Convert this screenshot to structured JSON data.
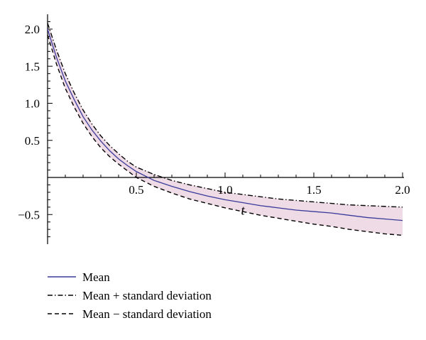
{
  "chart_data": {
    "type": "line",
    "title": "",
    "xlabel": "t",
    "ylabel": "",
    "xlim": [
      0,
      2.0
    ],
    "ylim": [
      -0.9,
      2.2
    ],
    "x_ticks": [
      0.5,
      1.0,
      1.5,
      2.0
    ],
    "x_tick_labels": [
      "0.5",
      "1.0",
      "1.5",
      "2.0"
    ],
    "y_ticks": [
      -0.5,
      0.5,
      1.0,
      1.5,
      2.0
    ],
    "y_tick_labels": [
      "−0.5",
      "0.5",
      "1.0",
      "1.5",
      "2.0"
    ],
    "grid": false,
    "legend_position": "bottom-left",
    "band_color": "#eedbe5",
    "x": [
      0,
      0.05,
      0.1,
      0.15,
      0.2,
      0.25,
      0.3,
      0.35,
      0.4,
      0.45,
      0.5,
      0.6,
      0.7,
      0.8,
      0.9,
      1.0,
      1.1,
      1.2,
      1.3,
      1.4,
      1.5,
      1.6,
      1.7,
      1.8,
      1.9,
      2.0
    ],
    "series": [
      {
        "name": "Mean",
        "style": "solid",
        "color": "#3a3a9a",
        "values": [
          2.0,
          1.62,
          1.3,
          1.05,
          0.82,
          0.64,
          0.49,
          0.36,
          0.25,
          0.16,
          0.08,
          -0.04,
          -0.12,
          -0.19,
          -0.25,
          -0.3,
          -0.34,
          -0.38,
          -0.41,
          -0.44,
          -0.46,
          -0.48,
          -0.51,
          -0.54,
          -0.56,
          -0.58
        ]
      },
      {
        "name": "Mean + standard deviation",
        "style": "dashdot",
        "color": "#000000",
        "values": [
          2.08,
          1.72,
          1.4,
          1.14,
          0.91,
          0.72,
          0.56,
          0.43,
          0.32,
          0.22,
          0.14,
          0.04,
          -0.04,
          -0.1,
          -0.15,
          -0.2,
          -0.23,
          -0.26,
          -0.29,
          -0.31,
          -0.33,
          -0.35,
          -0.37,
          -0.38,
          -0.39,
          -0.4
        ]
      },
      {
        "name": "Mean − standard deviation",
        "style": "dashed",
        "color": "#000000",
        "values": [
          1.92,
          1.53,
          1.2,
          0.95,
          0.73,
          0.55,
          0.4,
          0.28,
          0.18,
          0.09,
          0.0,
          -0.12,
          -0.21,
          -0.29,
          -0.35,
          -0.41,
          -0.46,
          -0.51,
          -0.55,
          -0.59,
          -0.63,
          -0.66,
          -0.7,
          -0.73,
          -0.76,
          -0.78
        ]
      }
    ]
  }
}
